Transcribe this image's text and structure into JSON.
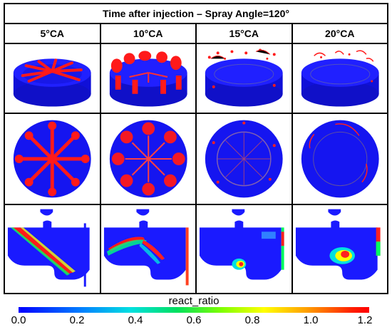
{
  "figure": {
    "title": "Time after injection – Spray Angle=120°",
    "columns": [
      {
        "label": "5°CA"
      },
      {
        "label": "10°CA"
      },
      {
        "label": "15°CA"
      },
      {
        "label": "20°CA"
      }
    ]
  },
  "colorbar": {
    "title": "react_ratio",
    "ticks": [
      "0.0",
      "0.2",
      "0.4",
      "0.6",
      "0.8",
      "1.0",
      "1.2"
    ],
    "range": [
      0.0,
      1.2
    ],
    "colors": {
      "low": "#0000ff",
      "mid": "#00e060",
      "high": "#ff0000"
    }
  }
}
